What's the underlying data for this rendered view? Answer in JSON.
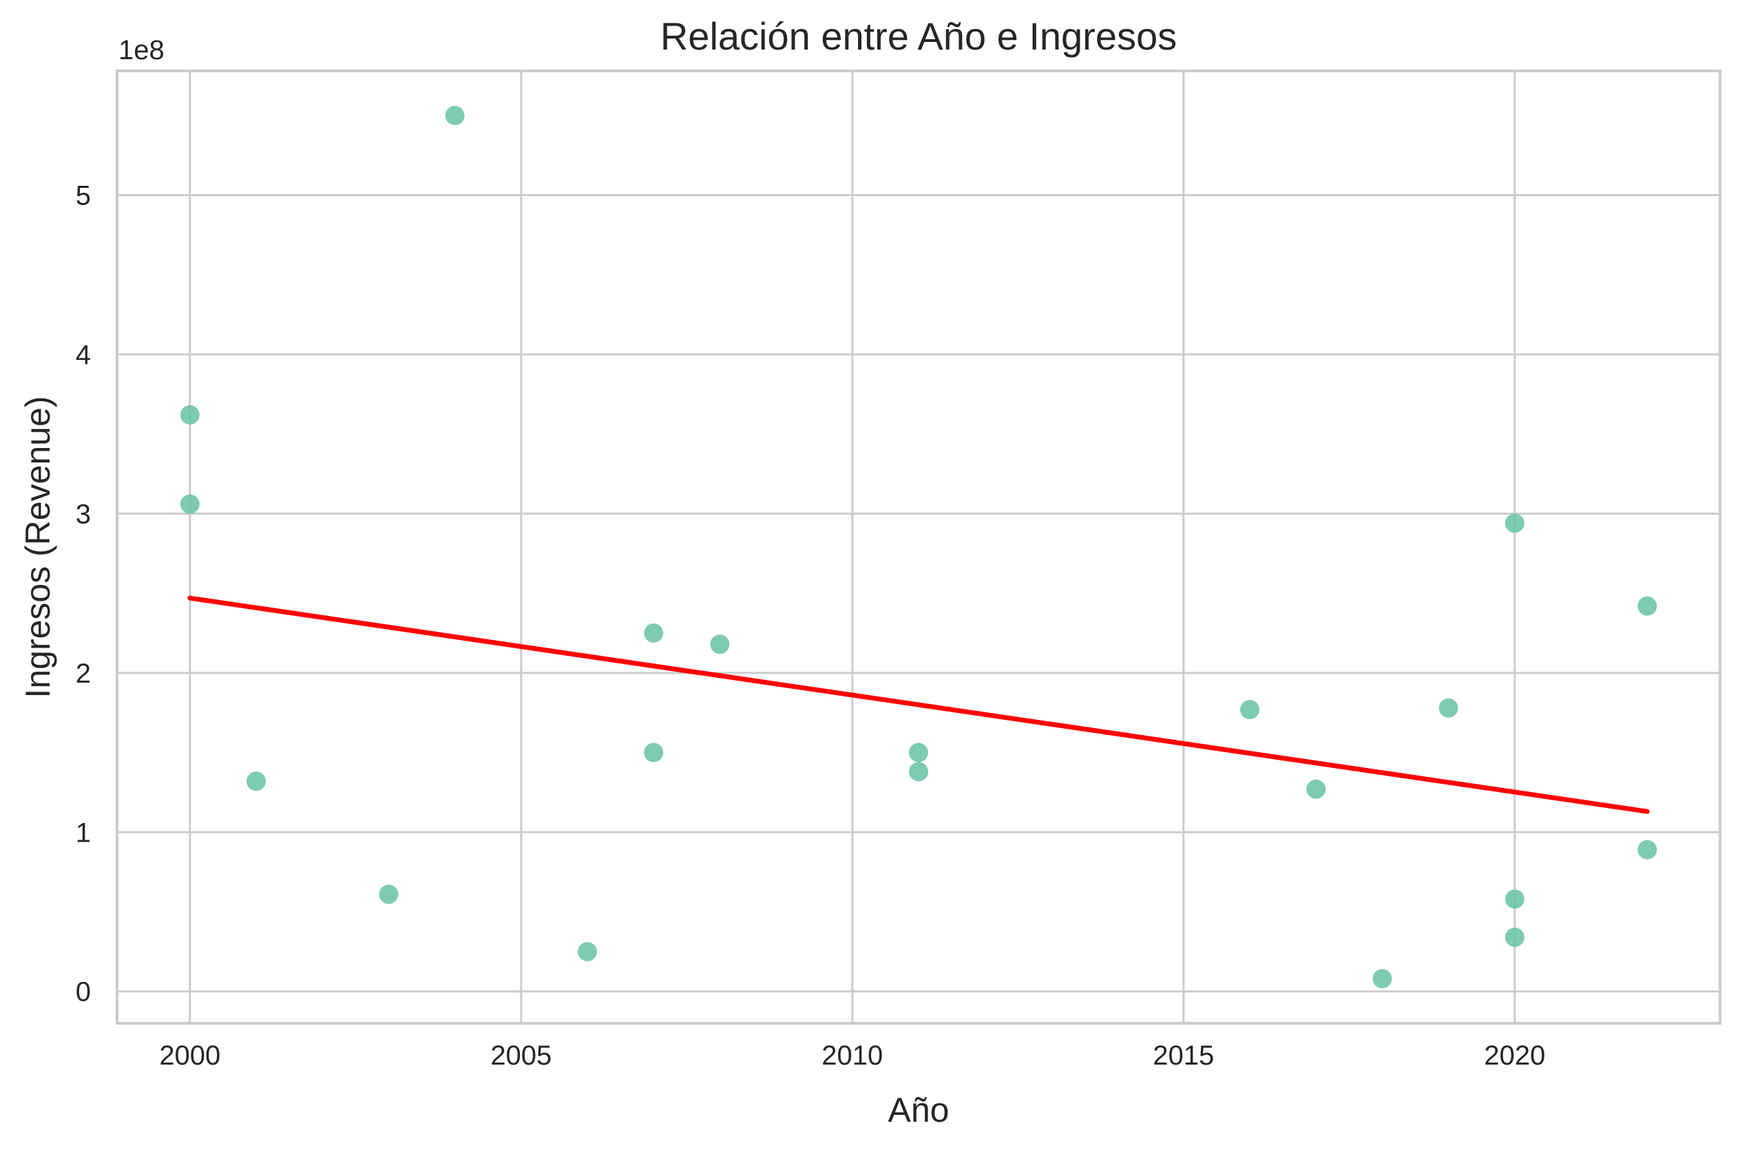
{
  "chart_data": {
    "type": "scatter",
    "title": "Relación entre Año e Ingresos",
    "xlabel": "Año",
    "ylabel": "Ingresos (Revenue)",
    "y_offset_label": "1e8",
    "y_unit_scale": 100000000,
    "xlim": [
      1998.9,
      2023.1
    ],
    "ylim": [
      -20000000,
      578000000
    ],
    "x_ticks": [
      2000,
      2005,
      2010,
      2015,
      2020
    ],
    "x_tick_labels": [
      "2000",
      "2005",
      "2010",
      "2015",
      "2020"
    ],
    "y_ticks": [
      0,
      100000000,
      200000000,
      300000000,
      400000000,
      500000000
    ],
    "y_tick_labels": [
      "0",
      "1",
      "2",
      "3",
      "4",
      "5"
    ],
    "grid": true,
    "legend": "none",
    "point_color": "#66c2a5",
    "line_color": "#ff0000",
    "series": [
      {
        "kind": "points",
        "points": [
          {
            "x": 2000,
            "y": 362000000
          },
          {
            "x": 2000,
            "y": 306000000
          },
          {
            "x": 2001,
            "y": 132000000
          },
          {
            "x": 2003,
            "y": 61000000
          },
          {
            "x": 2004,
            "y": 550000000
          },
          {
            "x": 2006,
            "y": 25000000
          },
          {
            "x": 2007,
            "y": 225000000
          },
          {
            "x": 2007,
            "y": 150000000
          },
          {
            "x": 2008,
            "y": 218000000
          },
          {
            "x": 2011,
            "y": 150000000
          },
          {
            "x": 2011,
            "y": 138000000
          },
          {
            "x": 2016,
            "y": 177000000
          },
          {
            "x": 2017,
            "y": 127000000
          },
          {
            "x": 2018,
            "y": 8000000
          },
          {
            "x": 2019,
            "y": 178000000
          },
          {
            "x": 2020,
            "y": 294000000
          },
          {
            "x": 2020,
            "y": 58000000
          },
          {
            "x": 2020,
            "y": 34000000
          },
          {
            "x": 2022,
            "y": 242000000
          },
          {
            "x": 2022,
            "y": 89000000
          }
        ]
      },
      {
        "kind": "trend-line",
        "points": [
          {
            "x": 2000,
            "y": 247000000
          },
          {
            "x": 2022,
            "y": 113000000
          }
        ]
      }
    ]
  }
}
